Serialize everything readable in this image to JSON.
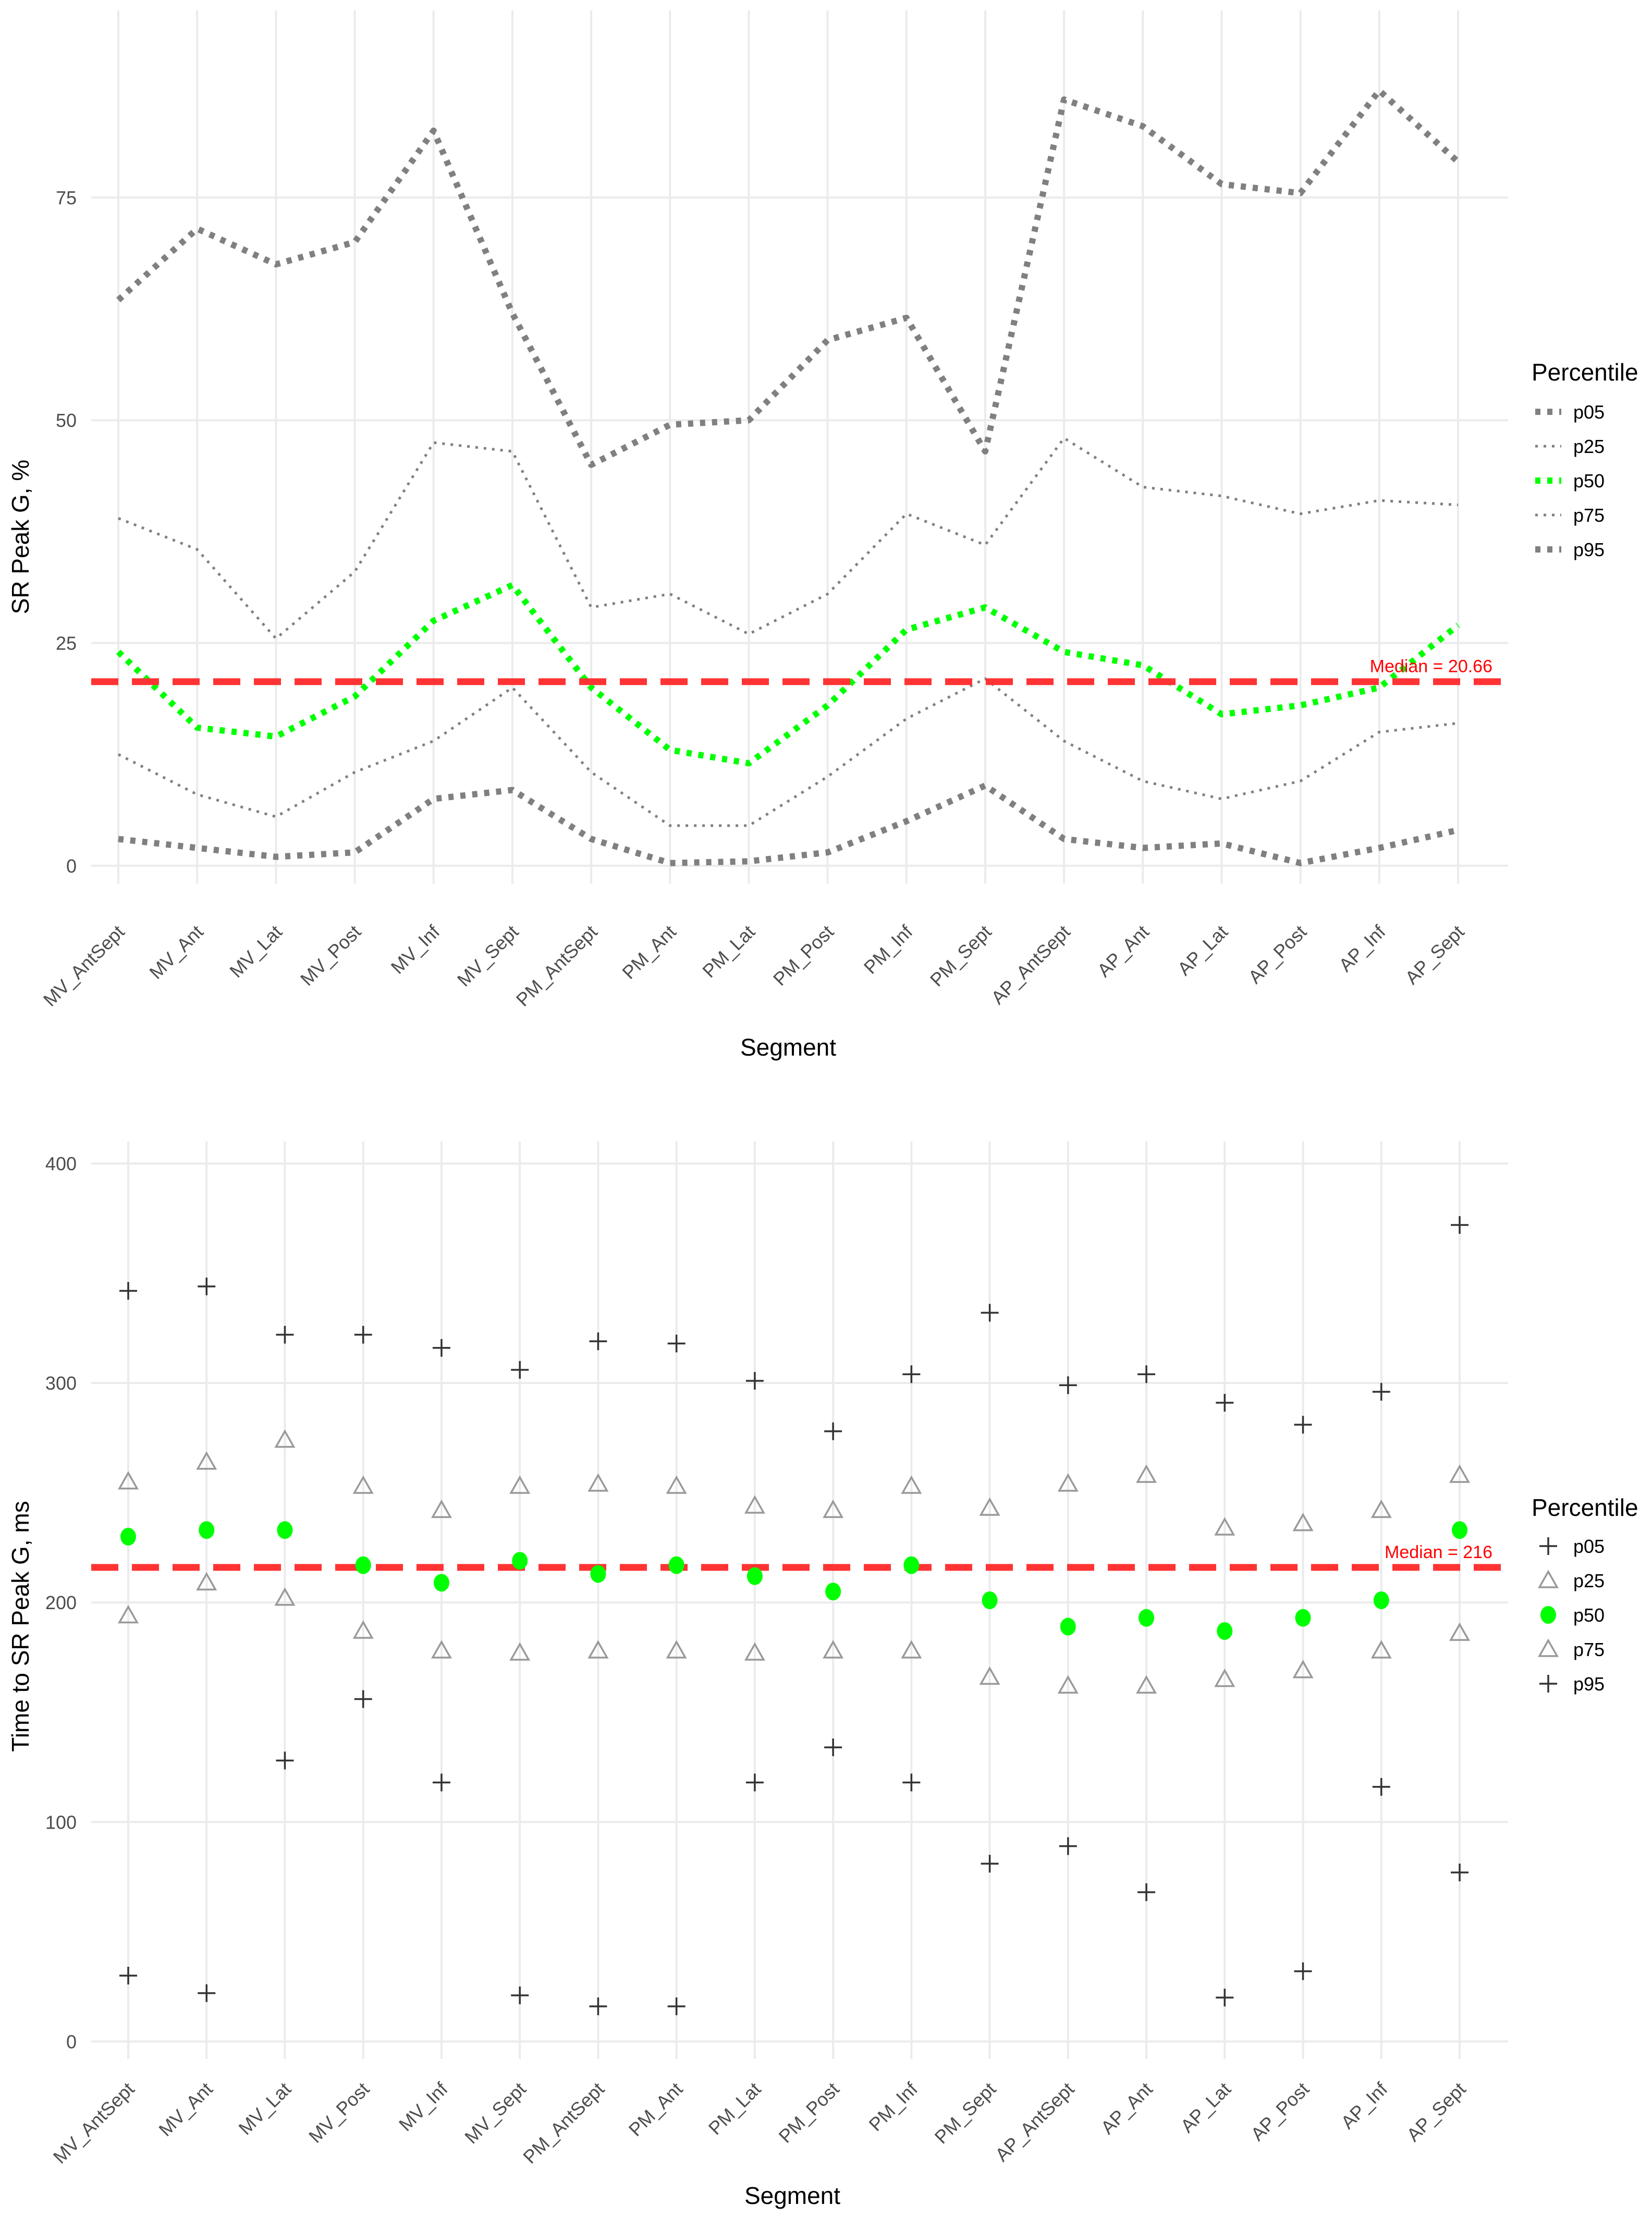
{
  "chart_data": [
    {
      "type": "line",
      "xlabel": "Segment",
      "ylabel": "SR Peak G, %",
      "ylim": [
        -2,
        96
      ],
      "yticks": [
        0,
        25,
        50,
        75
      ],
      "grid": true,
      "legend_title": "Percentile",
      "legend_position": "right",
      "categories": [
        "MV_AntSept",
        "MV_Ant",
        "MV_Lat",
        "MV_Post",
        "MV_Inf",
        "MV_Sept",
        "PM_AntSept",
        "PM_Ant",
        "PM_Lat",
        "PM_Post",
        "PM_Inf",
        "PM_Sept",
        "AP_AntSept",
        "AP_Ant",
        "AP_Lat",
        "AP_Post",
        "AP_Inf",
        "AP_Sept"
      ],
      "series": [
        {
          "name": "p05",
          "color": "#808080",
          "style": "thick-dotted",
          "values": [
            3,
            2,
            1,
            1.5,
            7.5,
            8.5,
            3,
            0.3,
            0.5,
            1.5,
            5,
            9,
            3,
            2,
            2.5,
            0.3,
            2,
            4
          ]
        },
        {
          "name": "p25",
          "color": "#808080",
          "style": "thin-dotted",
          "values": [
            12.5,
            8,
            5.5,
            10.5,
            14,
            20,
            10.5,
            4.5,
            4.5,
            10,
            16.5,
            21,
            14,
            9.5,
            7.5,
            9.5,
            15,
            16
          ]
        },
        {
          "name": "p50",
          "color": "#00ff00",
          "style": "thick-dotted",
          "values": [
            24,
            15.5,
            14.5,
            19,
            27.5,
            31.5,
            20,
            13,
            11.5,
            18,
            26.5,
            29,
            24,
            22.5,
            17,
            18,
            20,
            27
          ]
        },
        {
          "name": "p75",
          "color": "#808080",
          "style": "thin-dotted",
          "values": [
            39,
            35.5,
            25.5,
            33,
            47.5,
            46.5,
            29,
            30.5,
            26,
            30.5,
            39.5,
            36,
            48,
            42.5,
            41.5,
            39.5,
            41,
            40.5
          ]
        },
        {
          "name": "p95",
          "color": "#808080",
          "style": "thick-dotted",
          "values": [
            63.5,
            71.5,
            67.5,
            70,
            82.5,
            62,
            45,
            49.5,
            50,
            59,
            61.5,
            46.5,
            86,
            83,
            76.5,
            75.5,
            87,
            79
          ]
        }
      ],
      "median_line": {
        "value": 20.66,
        "label": "Median = 20.66",
        "color": "#ff3333"
      }
    },
    {
      "type": "scatter",
      "xlabel": "Segment",
      "ylabel": "Time to SR Peak G, ms",
      "ylim": [
        -8,
        410
      ],
      "yticks": [
        0,
        100,
        200,
        300,
        400
      ],
      "grid": true,
      "legend_title": "Percentile",
      "legend_position": "right",
      "categories": [
        "MV_AntSept",
        "MV_Ant",
        "MV_Lat",
        "MV_Post",
        "MV_Inf",
        "MV_Sept",
        "PM_AntSept",
        "PM_Ant",
        "PM_Lat",
        "PM_Post",
        "PM_Inf",
        "PM_Sept",
        "AP_AntSept",
        "AP_Ant",
        "AP_Lat",
        "AP_Post",
        "AP_Inf",
        "AP_Sept"
      ],
      "series": [
        {
          "name": "p05",
          "color": "#333333",
          "marker": "plus",
          "values": [
            30,
            22,
            128,
            156,
            118,
            21,
            16,
            16,
            118,
            134,
            118,
            81,
            89,
            68,
            20,
            32,
            116,
            77
          ]
        },
        {
          "name": "p25",
          "color": "#999999",
          "marker": "triangle",
          "values": [
            194,
            209,
            202,
            187,
            178,
            177,
            178,
            178,
            177,
            178,
            178,
            166,
            162,
            162,
            165,
            169,
            178,
            186
          ]
        },
        {
          "name": "p50",
          "color": "#00ff00",
          "marker": "circle",
          "values": [
            230,
            233,
            233,
            217,
            209,
            219,
            213,
            217,
            212,
            205,
            217,
            201,
            189,
            193,
            187,
            193,
            201,
            233
          ]
        },
        {
          "name": "p75",
          "color": "#999999",
          "marker": "triangle",
          "values": [
            255,
            264,
            274,
            253,
            242,
            253,
            254,
            253,
            244,
            242,
            253,
            243,
            254,
            258,
            234,
            236,
            242,
            258
          ]
        },
        {
          "name": "p95",
          "color": "#333333",
          "marker": "plus",
          "values": [
            342,
            344,
            322,
            322,
            316,
            306,
            319,
            318,
            301,
            278,
            304,
            332,
            299,
            304,
            291,
            281,
            296,
            372
          ]
        }
      ],
      "median_line": {
        "value": 216,
        "label": "Median = 216",
        "color": "#ff3333"
      }
    }
  ]
}
